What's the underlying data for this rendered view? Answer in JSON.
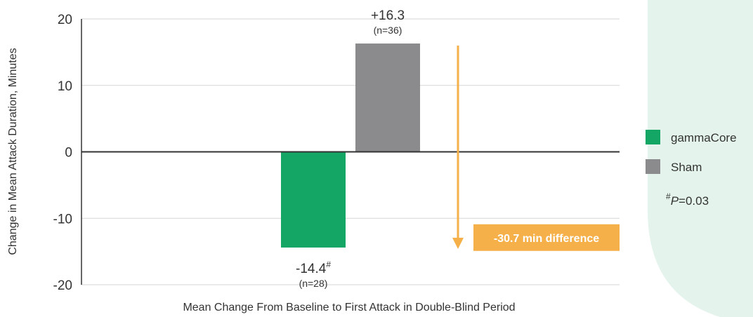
{
  "colors": {
    "gammacore": "#13A665",
    "sham": "#8B8B8E",
    "arrow": "#F5B04A",
    "callout_bg": "#F5B04A",
    "panel": "#E4F4EC",
    "gridline": "#d6d6d6",
    "axis": "#333333"
  },
  "chart_data": {
    "type": "bar",
    "title": "",
    "xlabel": "Mean Change From Baseline to First Attack in Double-Blind Period",
    "ylabel": "Change in Mean Attack Duration, Minutes",
    "ylim": [
      -20,
      20
    ],
    "yticks": [
      "20",
      "10",
      "0",
      "-10",
      "-20"
    ],
    "legend_position": "right",
    "series": [
      {
        "name": "gammaCore",
        "value": -14.4,
        "value_label": "-14.4",
        "marker": "#",
        "n_label": "(n=28)",
        "color": "#13A665"
      },
      {
        "name": "Sham",
        "value": 16.3,
        "value_label": "+16.3",
        "n_label": "(n=36)",
        "color": "#8B8B8E"
      }
    ],
    "annotation": {
      "from": 16.3,
      "to": -14.4,
      "label": "-30.7 min difference"
    },
    "footnote": {
      "marker": "#",
      "italic": "P",
      "text": "=0.03"
    }
  }
}
